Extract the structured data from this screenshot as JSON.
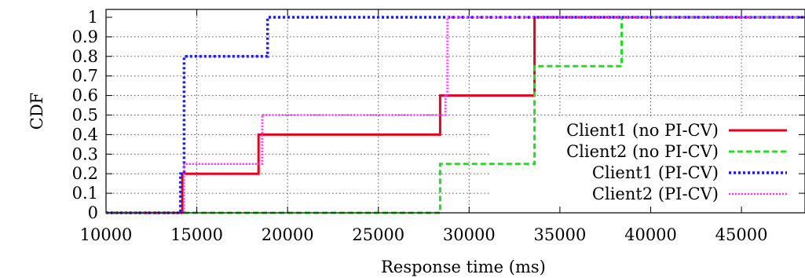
{
  "chart_data": {
    "type": "line",
    "step": true,
    "xlabel": "Response time (ms)",
    "ylabel": "CDF",
    "xlim": [
      10000,
      48500
    ],
    "ylim": [
      0,
      1.03
    ],
    "x_ticks": [
      10000,
      15000,
      20000,
      25000,
      30000,
      35000,
      40000,
      45000
    ],
    "x_tick_labels": [
      "10000",
      "15000",
      "20000",
      "25000",
      "30000",
      "35000",
      "40000",
      "45000"
    ],
    "y_ticks": [
      0,
      0.1,
      0.2,
      0.3,
      0.4,
      0.5,
      0.6,
      0.7,
      0.8,
      0.9,
      1
    ],
    "y_tick_labels": [
      "0",
      "0.1",
      "0.2",
      "0.3",
      "0.4",
      "0.5",
      "0.6",
      "0.7",
      "0.8",
      "0.9",
      "1"
    ],
    "grid": true,
    "legend_position": "right",
    "series": [
      {
        "name": "Client1 (no PI-CV)",
        "color": "#e8001c",
        "dash": "solid",
        "x": [
          10000,
          14200,
          14200,
          18400,
          18400,
          28400,
          28400,
          33600,
          33600,
          48500
        ],
        "y": [
          0,
          0,
          0.2,
          0.2,
          0.4,
          0.4,
          0.6,
          0.6,
          1,
          1
        ]
      },
      {
        "name": "Client2 (no PI-CV)",
        "color": "#1ee01e",
        "dash": "dashed",
        "x": [
          10000,
          28400,
          28400,
          33600,
          33600,
          38400,
          38400,
          48500
        ],
        "y": [
          0,
          0,
          0.25,
          0.25,
          0.75,
          0.75,
          1,
          1
        ]
      },
      {
        "name": "Client1 (PI-CV)",
        "color": "#1a1aff",
        "dash": "dotted",
        "x": [
          10000,
          14100,
          14100,
          14300,
          14300,
          18900,
          18900,
          48500
        ],
        "y": [
          0,
          0,
          0.2,
          0.2,
          0.8,
          0.8,
          1,
          1
        ]
      },
      {
        "name": "Client2 (PI-CV)",
        "color": "#ff2cff",
        "dash": "dotted-fine",
        "x": [
          10000,
          14300,
          14300,
          18600,
          18600,
          28700,
          28700,
          28800,
          28800,
          48500
        ],
        "y": [
          0,
          0,
          0.25,
          0.25,
          0.5,
          0.5,
          0.6,
          0.6,
          1,
          1
        ]
      }
    ]
  }
}
